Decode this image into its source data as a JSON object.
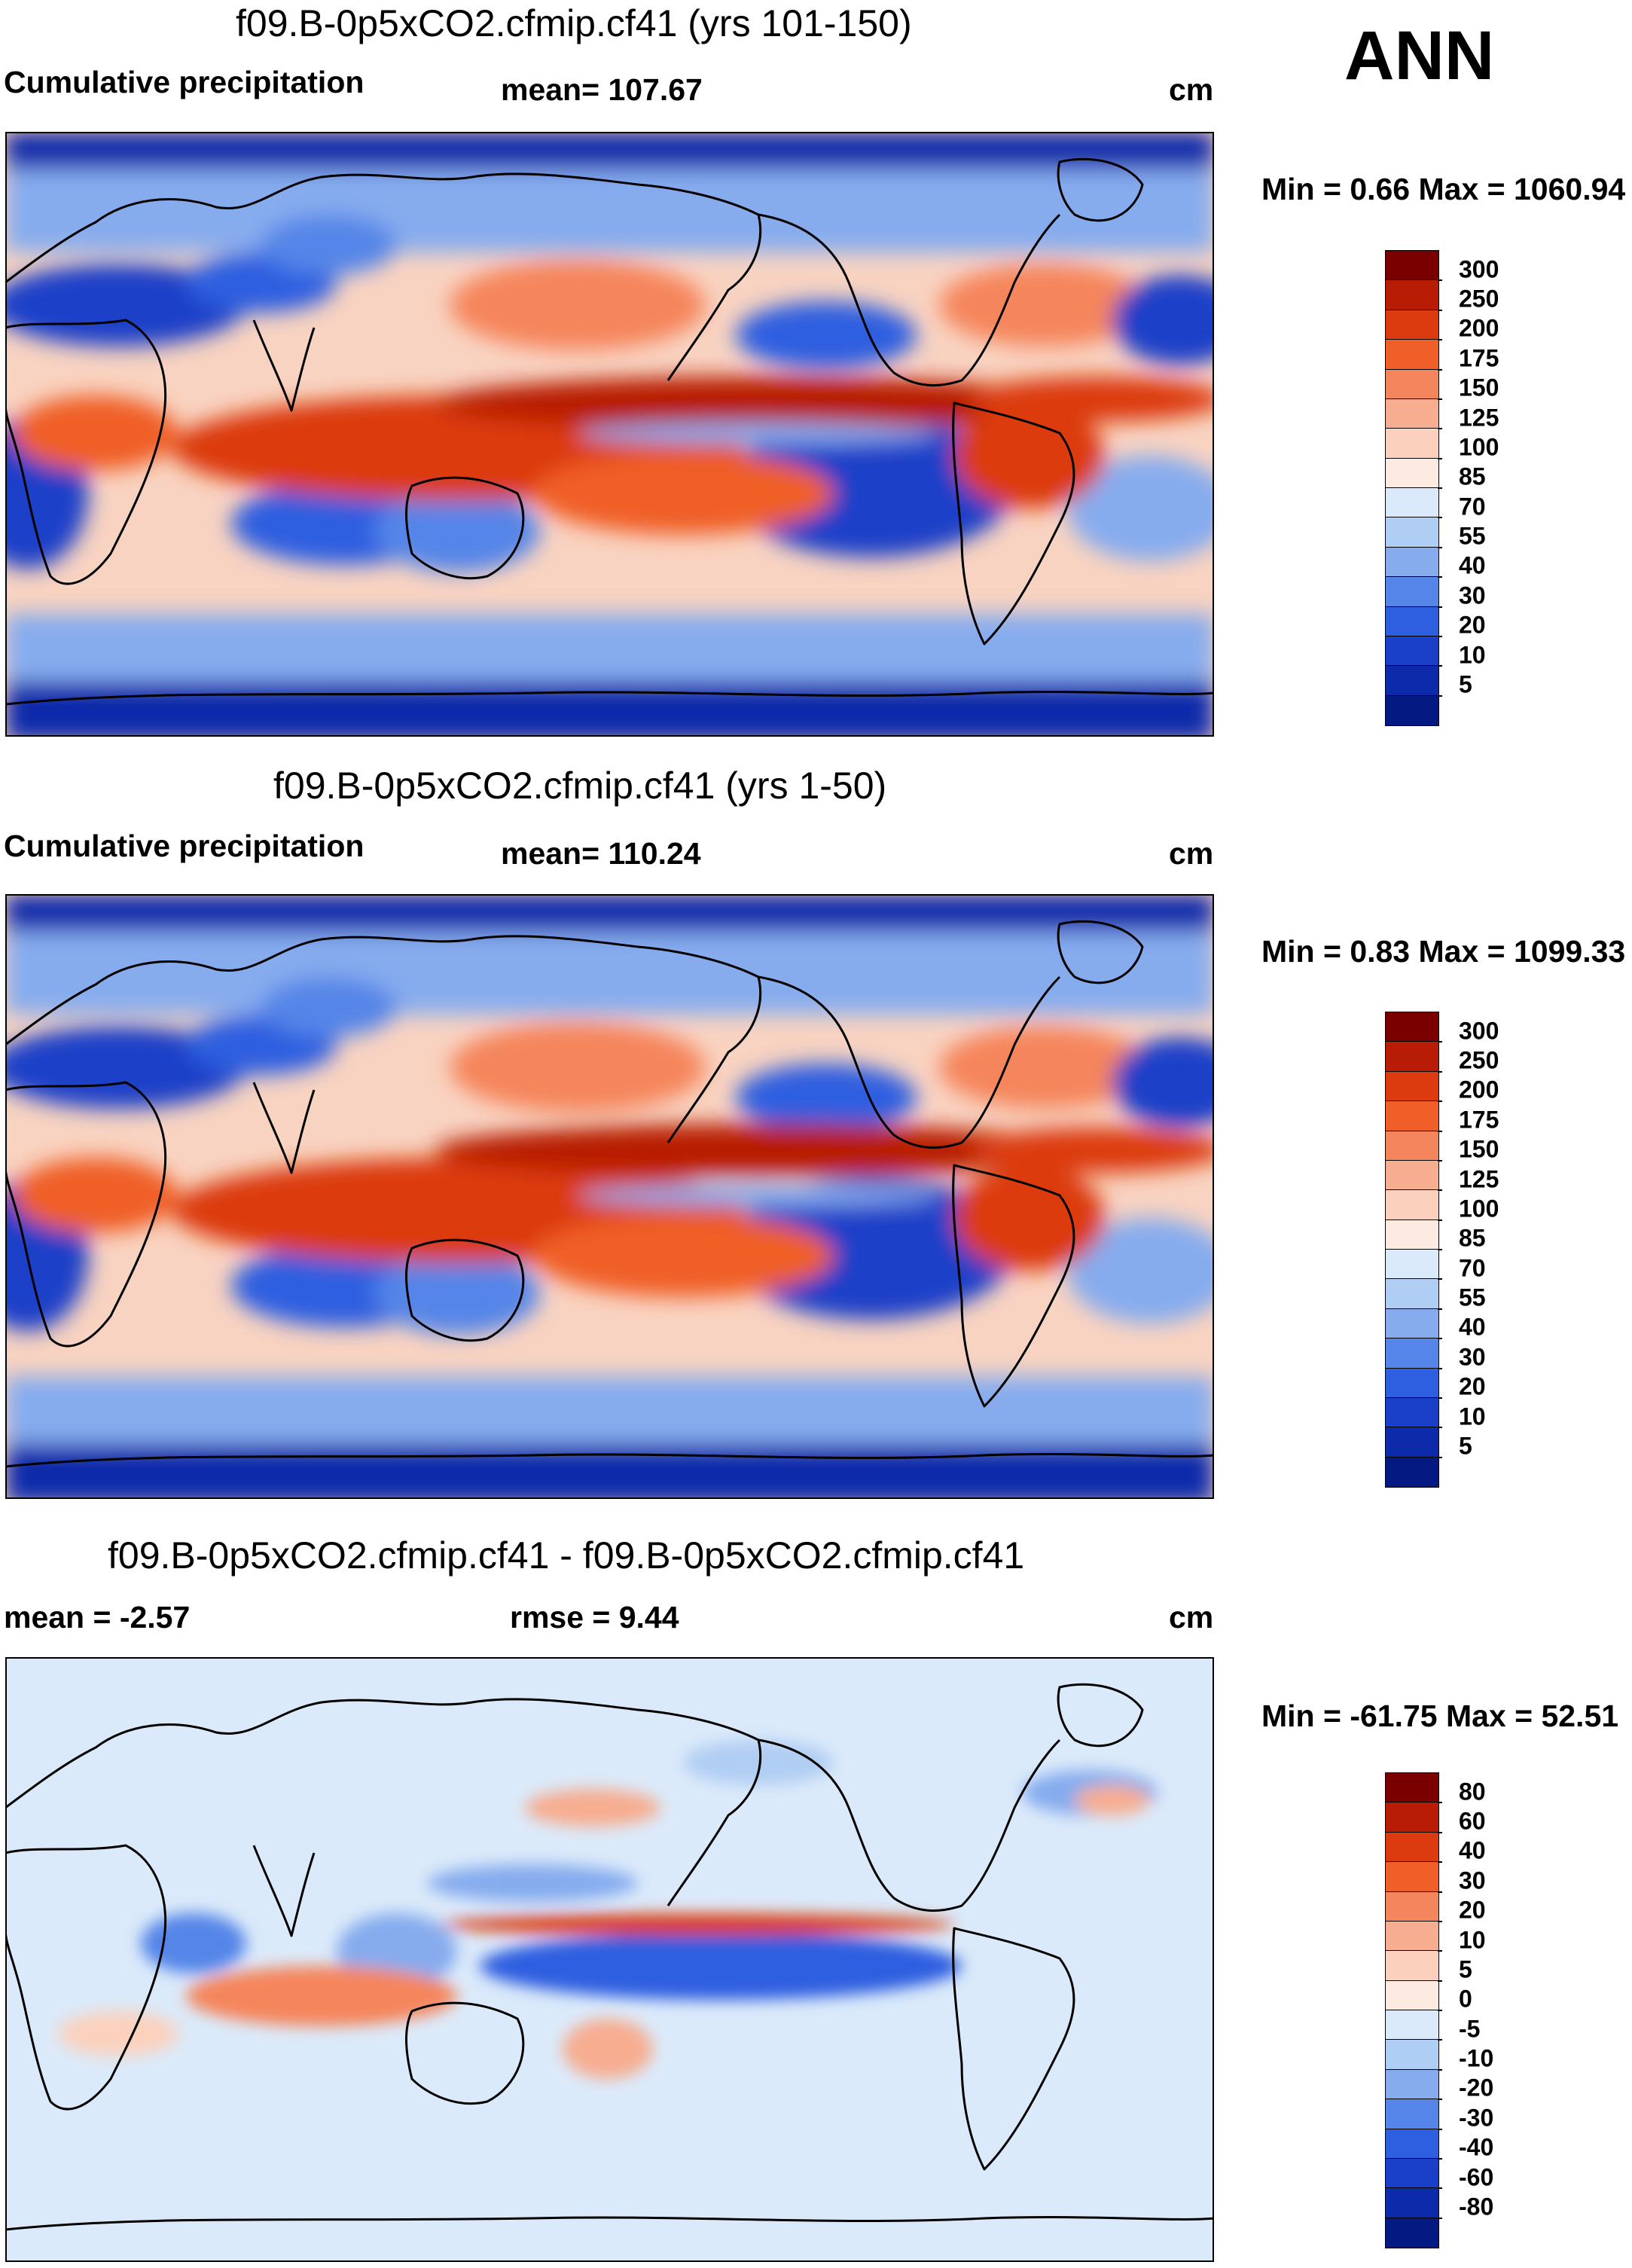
{
  "season": "ANN",
  "panels": [
    {
      "title": "f09.B-0p5xCO2.cfmip.cf41 (yrs 101-150)",
      "left_label": "Cumulative precipitation",
      "center_label": "mean= 107.67",
      "right_label": "cm",
      "minmax": "Min =   0.66 Max = 1060.94",
      "colorbar": {
        "labels": [
          "300",
          "250",
          "200",
          "175",
          "150",
          "125",
          "100",
          "85",
          "70",
          "55",
          "40",
          "30",
          "20",
          "10",
          "5"
        ],
        "colors": [
          "#7a0000",
          "#b81c05",
          "#dc3a0f",
          "#f05f27",
          "#f5855c",
          "#f7ad90",
          "#fbd1bd",
          "#fdebe1",
          "#dbeafa",
          "#b0cdf3",
          "#86acee",
          "#5585e8",
          "#2d5fe0",
          "#1a3fc8",
          "#0c2aaa",
          "#041a82"
        ]
      }
    },
    {
      "title": "f09.B-0p5xCO2.cfmip.cf41 (yrs 1-50)",
      "left_label": "Cumulative precipitation",
      "center_label": "mean= 110.24",
      "right_label": "cm",
      "minmax": "Min =   0.83 Max = 1099.33",
      "colorbar": {
        "labels": [
          "300",
          "250",
          "200",
          "175",
          "150",
          "125",
          "100",
          "85",
          "70",
          "55",
          "40",
          "30",
          "20",
          "10",
          "5"
        ],
        "colors": [
          "#7a0000",
          "#b81c05",
          "#dc3a0f",
          "#f05f27",
          "#f5855c",
          "#f7ad90",
          "#fbd1bd",
          "#fdebe1",
          "#dbeafa",
          "#b0cdf3",
          "#86acee",
          "#5585e8",
          "#2d5fe0",
          "#1a3fc8",
          "#0c2aaa",
          "#041a82"
        ]
      }
    },
    {
      "title": "f09.B-0p5xCO2.cfmip.cf41 - f09.B-0p5xCO2.cfmip.cf41",
      "left_label": "mean =  -2.57",
      "center_label": "rmse =   9.44",
      "right_label": "cm",
      "minmax": "Min = -61.75 Max =  52.51",
      "colorbar": {
        "labels": [
          "80",
          "60",
          "40",
          "30",
          "20",
          "10",
          "5",
          "0",
          "-5",
          "-10",
          "-20",
          "-30",
          "-40",
          "-60",
          "-80"
        ],
        "colors": [
          "#7a0000",
          "#b81c05",
          "#dc3a0f",
          "#f05f27",
          "#f5855c",
          "#f7ad90",
          "#fbd1bd",
          "#fdebe1",
          "#dbeafa",
          "#b0cdf3",
          "#86acee",
          "#5585e8",
          "#2d5fe0",
          "#1a3fc8",
          "#0c2aaa",
          "#041a82"
        ]
      }
    }
  ]
}
